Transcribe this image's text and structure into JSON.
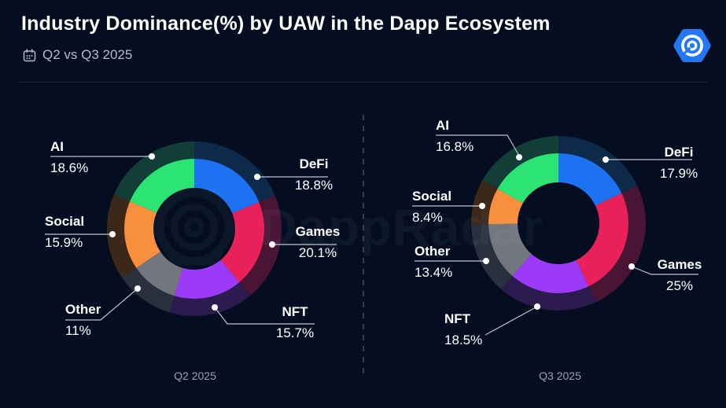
{
  "page": {
    "title": "Industry Dominance(%) by UAW in the Dapp Ecosystem",
    "subtitle": "Q2 vs Q3 2025",
    "brand": "DappRadar",
    "watermark_text": "DappRadar"
  },
  "colors": {
    "background": "#040e20",
    "title_text": "#ffffff",
    "subtitle_text": "#b3bbcb",
    "caption_text": "#98a1b5",
    "leader_line": "#bcc4d2",
    "dashed_divider": "#454e63",
    "logo_blue": "#2277f5"
  },
  "chart_data": [
    {
      "type": "pie",
      "variant": "two-ring-donut",
      "period": "Q2 2025",
      "unit": "%",
      "rotation": "clockwise-from-top",
      "legend_position": "callouts-around-chart",
      "segments": [
        {
          "label": "DeFi",
          "value": 18.8,
          "display": "18.8%",
          "color": "#1d72f2",
          "outer_color": "#0d2a4b"
        },
        {
          "label": "Games",
          "value": 20.1,
          "display": "20.1%",
          "color": "#e8215a",
          "outer_color": "#4a1534"
        },
        {
          "label": "NFT",
          "value": 15.7,
          "display": "15.7%",
          "color": "#9c3bf7",
          "outer_color": "#2b1b4e"
        },
        {
          "label": "Other",
          "value": 11,
          "display": "11%",
          "color": "#72767e",
          "outer_color": "#2a303d"
        },
        {
          "label": "Social",
          "value": 15.9,
          "display": "15.9%",
          "color": "#f88f3d",
          "outer_color": "#3b2818"
        },
        {
          "label": "AI",
          "value": 18.6,
          "display": "18.6%",
          "color": "#2be474",
          "outer_color": "#133e37"
        }
      ]
    },
    {
      "type": "pie",
      "variant": "two-ring-donut",
      "period": "Q3 2025",
      "unit": "%",
      "rotation": "clockwise-from-top",
      "legend_position": "callouts-around-chart",
      "segments": [
        {
          "label": "DeFi",
          "value": 17.9,
          "display": "17.9%",
          "color": "#1d72f2",
          "outer_color": "#0d2a4b"
        },
        {
          "label": "Games",
          "value": 25,
          "display": "25%",
          "color": "#e8215a",
          "outer_color": "#4a1534"
        },
        {
          "label": "NFT",
          "value": 18.5,
          "display": "18.5%",
          "color": "#9c3bf7",
          "outer_color": "#2b1b4e"
        },
        {
          "label": "Other",
          "value": 13.4,
          "display": "13.4%",
          "color": "#72767e",
          "outer_color": "#2a303d"
        },
        {
          "label": "Social",
          "value": 8.4,
          "display": "8.4%",
          "color": "#f88f3d",
          "outer_color": "#3b2818"
        },
        {
          "label": "AI",
          "value": 16.8,
          "display": "16.8%",
          "color": "#2be474",
          "outer_color": "#133e37"
        }
      ]
    }
  ]
}
